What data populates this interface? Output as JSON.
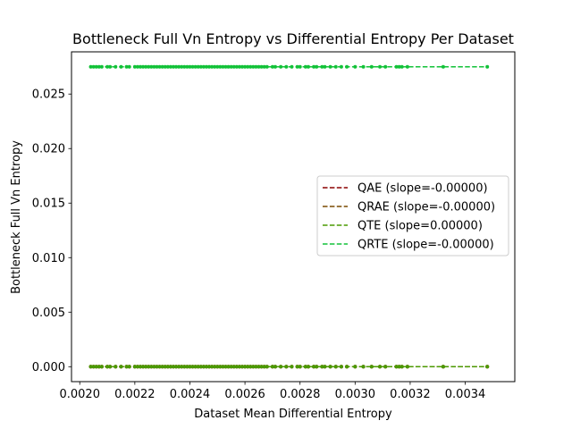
{
  "chart_data": {
    "type": "scatter",
    "title": "Bottleneck Full Vn Entropy vs Differential Entropy Per Dataset",
    "xlabel": "Dataset Mean Differential Entropy",
    "ylabel": "Bottleneck Full Vn Entropy",
    "xlim": [
      0.00197,
      0.00358
    ],
    "ylim": [
      -0.00137,
      0.02887
    ],
    "x_ticks": [
      0.002,
      0.0022,
      0.0024,
      0.0026,
      0.0028,
      0.003,
      0.0032,
      0.0034
    ],
    "x_tick_labels": [
      "0.0020",
      "0.0022",
      "0.0024",
      "0.0026",
      "0.0028",
      "0.0030",
      "0.0032",
      "0.0034"
    ],
    "y_ticks": [
      0.0,
      0.005,
      0.01,
      0.015,
      0.02,
      0.025
    ],
    "y_tick_labels": [
      "0.000",
      "0.005",
      "0.010",
      "0.015",
      "0.020",
      "0.025"
    ],
    "legend_position": "center-right",
    "grid": false,
    "series": [
      {
        "name": "QAE (slope=-0.00000)",
        "color": "#8b0000",
        "y": 0.0,
        "x_range": [
          0.00204,
          0.00348
        ],
        "x": [
          0.00204,
          0.00205,
          0.00206,
          0.00207,
          0.00208,
          0.0021,
          0.00211,
          0.00213,
          0.00215,
          0.00217,
          0.00218,
          0.0022,
          0.00221,
          0.00222,
          0.00223,
          0.00224,
          0.00225,
          0.00226,
          0.00227,
          0.00228,
          0.00229,
          0.0023,
          0.00231,
          0.00232,
          0.00233,
          0.00234,
          0.00235,
          0.00236,
          0.00237,
          0.00238,
          0.00239,
          0.0024,
          0.00241,
          0.00242,
          0.00243,
          0.00244,
          0.00245,
          0.00246,
          0.00247,
          0.00248,
          0.00249,
          0.0025,
          0.00251,
          0.00252,
          0.00253,
          0.00254,
          0.00255,
          0.00256,
          0.00257,
          0.00258,
          0.00259,
          0.0026,
          0.00261,
          0.00262,
          0.00263,
          0.00264,
          0.00265,
          0.00266,
          0.00267,
          0.00268,
          0.0027,
          0.00271,
          0.00273,
          0.00275,
          0.00277,
          0.00279,
          0.0028,
          0.00282,
          0.00283,
          0.00285,
          0.00286,
          0.00288,
          0.00289,
          0.00291,
          0.00293,
          0.00295,
          0.00297,
          0.003,
          0.00303,
          0.00306,
          0.00309,
          0.00311,
          0.00315,
          0.00316,
          0.00317,
          0.00319,
          0.00332,
          0.00348
        ]
      },
      {
        "name": "QRAE (slope=-0.00000)",
        "color": "#7a4a00",
        "y": 0.0,
        "x_range": [
          0.00204,
          0.00348
        ],
        "x": [
          0.00204,
          0.00205,
          0.00206,
          0.00207,
          0.00208,
          0.0021,
          0.00211,
          0.00213,
          0.00215,
          0.00217,
          0.00218,
          0.0022,
          0.00221,
          0.00222,
          0.00223,
          0.00224,
          0.00225,
          0.00226,
          0.00227,
          0.00228,
          0.00229,
          0.0023,
          0.00231,
          0.00232,
          0.00233,
          0.00234,
          0.00235,
          0.00236,
          0.00237,
          0.00238,
          0.00239,
          0.0024,
          0.00241,
          0.00242,
          0.00243,
          0.00244,
          0.00245,
          0.00246,
          0.00247,
          0.00248,
          0.00249,
          0.0025,
          0.00251,
          0.00252,
          0.00253,
          0.00254,
          0.00255,
          0.00256,
          0.00257,
          0.00258,
          0.00259,
          0.0026,
          0.00261,
          0.00262,
          0.00263,
          0.00264,
          0.00265,
          0.00266,
          0.00267,
          0.00268,
          0.0027,
          0.00271,
          0.00273,
          0.00275,
          0.00277,
          0.00279,
          0.0028,
          0.00282,
          0.00283,
          0.00285,
          0.00286,
          0.00288,
          0.00289,
          0.00291,
          0.00293,
          0.00295,
          0.00297,
          0.003,
          0.00303,
          0.00306,
          0.00309,
          0.00311,
          0.00315,
          0.00316,
          0.00317,
          0.00319,
          0.00332,
          0.00348
        ]
      },
      {
        "name": "QTE (slope=0.00000)",
        "color": "#4a9a00",
        "y": 0.0,
        "x_range": [
          0.00204,
          0.00348
        ],
        "x": [
          0.00204,
          0.00205,
          0.00206,
          0.00207,
          0.00208,
          0.0021,
          0.00211,
          0.00213,
          0.00215,
          0.00217,
          0.00218,
          0.0022,
          0.00221,
          0.00222,
          0.00223,
          0.00224,
          0.00225,
          0.00226,
          0.00227,
          0.00228,
          0.00229,
          0.0023,
          0.00231,
          0.00232,
          0.00233,
          0.00234,
          0.00235,
          0.00236,
          0.00237,
          0.00238,
          0.00239,
          0.0024,
          0.00241,
          0.00242,
          0.00243,
          0.00244,
          0.00245,
          0.00246,
          0.00247,
          0.00248,
          0.00249,
          0.0025,
          0.00251,
          0.00252,
          0.00253,
          0.00254,
          0.00255,
          0.00256,
          0.00257,
          0.00258,
          0.00259,
          0.0026,
          0.00261,
          0.00262,
          0.00263,
          0.00264,
          0.00265,
          0.00266,
          0.00267,
          0.00268,
          0.0027,
          0.00271,
          0.00273,
          0.00275,
          0.00277,
          0.00279,
          0.0028,
          0.00282,
          0.00283,
          0.00285,
          0.00286,
          0.00288,
          0.00289,
          0.00291,
          0.00293,
          0.00295,
          0.00297,
          0.003,
          0.00303,
          0.00306,
          0.00309,
          0.00311,
          0.00315,
          0.00316,
          0.00317,
          0.00319,
          0.00332,
          0.00348
        ]
      },
      {
        "name": "QRTE (slope=-0.00000)",
        "color": "#12c238",
        "y": 0.0275,
        "x_range": [
          0.00204,
          0.00348
        ],
        "x": [
          0.00204,
          0.00205,
          0.00206,
          0.00207,
          0.00208,
          0.0021,
          0.00211,
          0.00213,
          0.00215,
          0.00217,
          0.00218,
          0.0022,
          0.00221,
          0.00222,
          0.00223,
          0.00224,
          0.00225,
          0.00226,
          0.00227,
          0.00228,
          0.00229,
          0.0023,
          0.00231,
          0.00232,
          0.00233,
          0.00234,
          0.00235,
          0.00236,
          0.00237,
          0.00238,
          0.00239,
          0.0024,
          0.00241,
          0.00242,
          0.00243,
          0.00244,
          0.00245,
          0.00246,
          0.00247,
          0.00248,
          0.00249,
          0.0025,
          0.00251,
          0.00252,
          0.00253,
          0.00254,
          0.00255,
          0.00256,
          0.00257,
          0.00258,
          0.00259,
          0.0026,
          0.00261,
          0.00262,
          0.00263,
          0.00264,
          0.00265,
          0.00266,
          0.00267,
          0.00268,
          0.0027,
          0.00271,
          0.00273,
          0.00275,
          0.00277,
          0.00279,
          0.0028,
          0.00282,
          0.00283,
          0.00285,
          0.00286,
          0.00288,
          0.00289,
          0.00291,
          0.00293,
          0.00295,
          0.00297,
          0.003,
          0.00303,
          0.00306,
          0.00309,
          0.00311,
          0.00315,
          0.00316,
          0.00317,
          0.00319,
          0.00332,
          0.00348
        ]
      }
    ]
  }
}
